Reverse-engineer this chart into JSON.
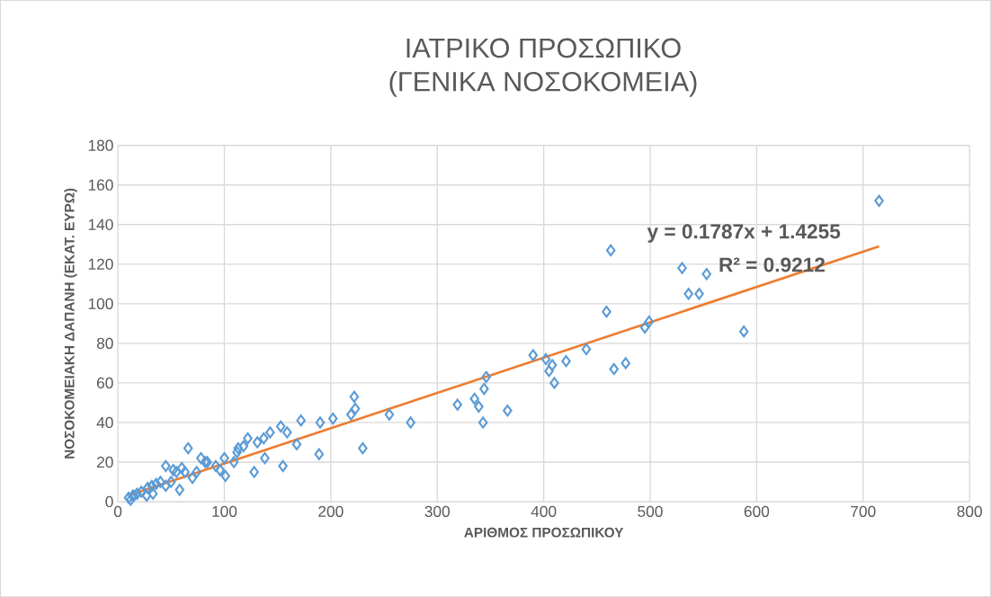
{
  "chart_data": {
    "type": "scatter",
    "title": "ΙΑΤΡΙΚΟ ΠΡΟΣΩΠΙΚΟ",
    "subtitle": "(ΓΕΝΙΚΑ ΝΟΣΟΚΟΜΕΙΑ)",
    "xlabel": "ΑΡΙΘΜΟΣ ΠΡΟΣΩΠΙΚΟΥ",
    "ylabel": "ΝΟΣΟΚΟΜΕΙΑΚΗ ΔΑΠΑΝΗ (ΕΚΑΤ. ΕΥΡΩ)",
    "xlim": [
      0,
      800
    ],
    "ylim": [
      0,
      180
    ],
    "xticks": [
      0,
      100,
      200,
      300,
      400,
      500,
      600,
      700,
      800
    ],
    "yticks": [
      0,
      20,
      40,
      60,
      80,
      100,
      120,
      140,
      160,
      180
    ],
    "grid": true,
    "marker": "diamond",
    "annotations": [
      "y = 0.1787x + 1.4255",
      "R² = 0.9212"
    ],
    "series": [
      {
        "color": "#5b9bd5",
        "x": [
          715,
          463,
          530,
          553,
          536,
          546,
          459,
          499,
          495,
          588,
          390,
          402,
          440,
          405,
          408,
          421,
          477,
          466,
          410,
          346,
          344,
          335,
          339,
          366,
          343,
          319,
          275,
          255,
          230,
          222,
          223,
          219,
          202,
          190,
          189,
          172,
          168,
          159,
          153,
          143,
          155,
          138,
          137,
          131,
          128,
          122,
          118,
          113,
          112,
          109,
          100,
          96,
          101,
          92,
          84,
          78,
          82,
          74,
          70,
          66,
          60,
          63,
          55,
          52,
          58,
          50,
          45,
          45,
          40,
          36,
          32,
          28,
          33,
          27,
          22,
          18,
          14,
          10,
          12,
          15
        ],
        "values": [
          152,
          127,
          118,
          115,
          105,
          105,
          96,
          91,
          88,
          86,
          74,
          72,
          77,
          66,
          69,
          71,
          70,
          67,
          60,
          63,
          57,
          52,
          48,
          46,
          40,
          49,
          40,
          44,
          27,
          53,
          47,
          44,
          42,
          40,
          24,
          41,
          29,
          35,
          38,
          35,
          18,
          22,
          32,
          30,
          15,
          32,
          28,
          27,
          25,
          20,
          22,
          16,
          13,
          18,
          20,
          22,
          20,
          15,
          12,
          27,
          17,
          15,
          15,
          16,
          6,
          10,
          18,
          8,
          10,
          9,
          8,
          7,
          4,
          3,
          5,
          4,
          3,
          2,
          1,
          3
        ]
      },
      {
        "type": "line",
        "color": "#ed7d31",
        "marker": "none",
        "x": [
          10,
          715
        ],
        "values": [
          3.2,
          129
        ]
      }
    ]
  }
}
